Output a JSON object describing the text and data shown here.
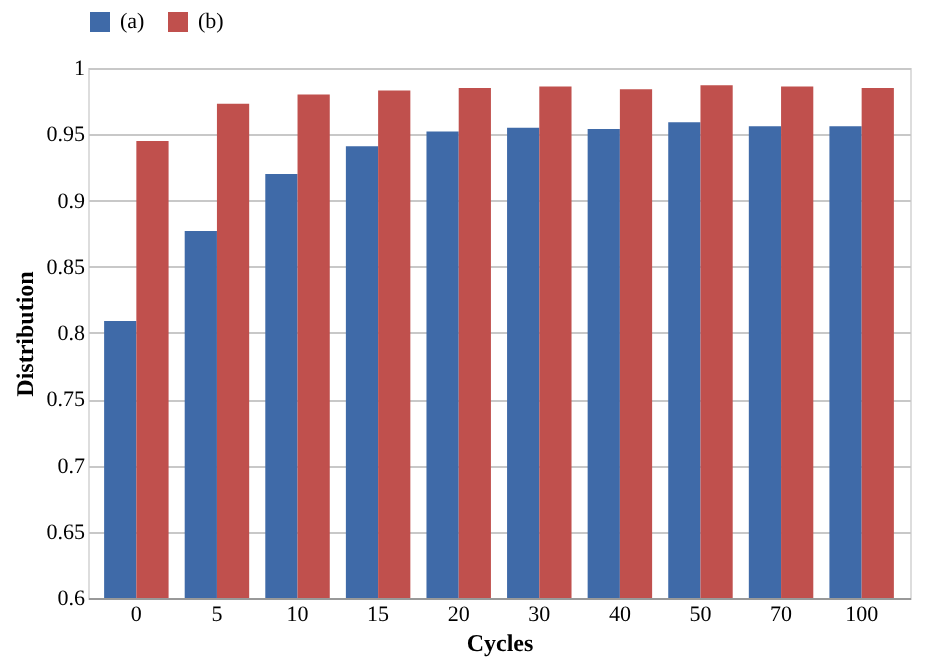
{
  "chart_data": {
    "type": "bar",
    "xlabel": "Cycles",
    "ylabel": "Distribution",
    "categories": [
      "0",
      "5",
      "10",
      "15",
      "20",
      "30",
      "40",
      "50",
      "70",
      "100"
    ],
    "series": [
      {
        "name": "(a)",
        "color": "#3f6aa8",
        "values": [
          0.809,
          0.877,
          0.92,
          0.941,
          0.952,
          0.955,
          0.954,
          0.959,
          0.956,
          0.956
        ]
      },
      {
        "name": "(b)",
        "color": "#c0504d",
        "values": [
          0.945,
          0.973,
          0.98,
          0.983,
          0.985,
          0.986,
          0.984,
          0.987,
          0.986,
          0.985
        ]
      }
    ],
    "ylim": [
      0.6,
      1
    ],
    "yticks": [
      0.6,
      0.65,
      0.7,
      0.75,
      0.8,
      0.85,
      0.9,
      0.95,
      1
    ],
    "grid": "y",
    "legend": "top"
  }
}
